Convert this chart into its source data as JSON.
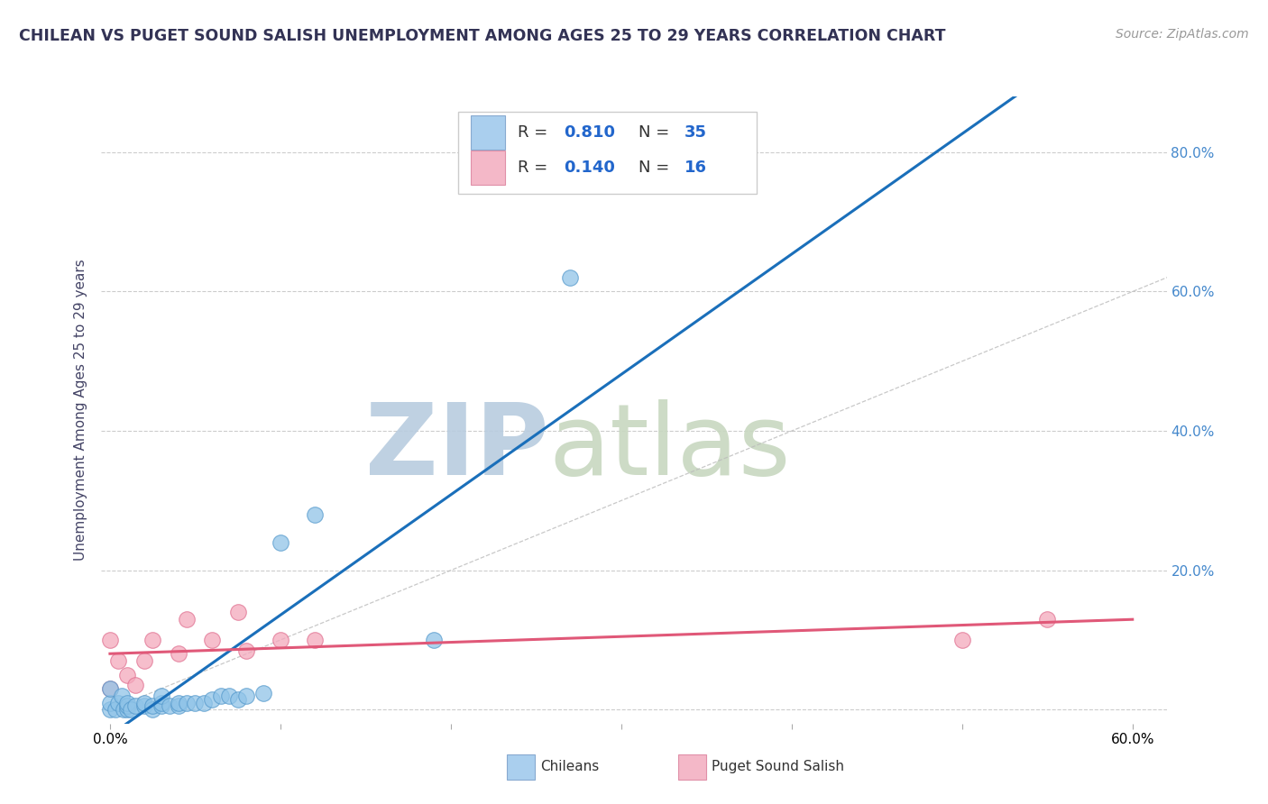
{
  "title": "CHILEAN VS PUGET SOUND SALISH UNEMPLOYMENT AMONG AGES 25 TO 29 YEARS CORRELATION CHART",
  "source_text": "Source: ZipAtlas.com",
  "ylabel": "Unemployment Among Ages 25 to 29 years",
  "xlim": [
    -0.005,
    0.62
  ],
  "ylim": [
    -0.02,
    0.88
  ],
  "xticks": [
    0.0,
    0.1,
    0.2,
    0.3,
    0.4,
    0.5,
    0.6
  ],
  "xtick_labels": [
    "0.0%",
    "",
    "",
    "",
    "",
    "",
    "60.0%"
  ],
  "ytick_labels_right": [
    "",
    "20.0%",
    "40.0%",
    "60.0%",
    "80.0%"
  ],
  "ytick_vals": [
    0.0,
    0.2,
    0.4,
    0.6,
    0.8
  ],
  "chileans_x": [
    0.0,
    0.0,
    0.0,
    0.003,
    0.005,
    0.007,
    0.008,
    0.01,
    0.01,
    0.01,
    0.012,
    0.015,
    0.02,
    0.02,
    0.025,
    0.025,
    0.03,
    0.03,
    0.03,
    0.035,
    0.04,
    0.04,
    0.045,
    0.05,
    0.055,
    0.06,
    0.065,
    0.07,
    0.075,
    0.08,
    0.09,
    0.1,
    0.12,
    0.19,
    0.27
  ],
  "chileans_y": [
    0.0,
    0.01,
    0.03,
    0.0,
    0.01,
    0.02,
    0.0,
    0.0,
    0.005,
    0.01,
    0.0,
    0.005,
    0.005,
    0.01,
    0.0,
    0.005,
    0.005,
    0.01,
    0.02,
    0.005,
    0.005,
    0.01,
    0.01,
    0.01,
    0.01,
    0.015,
    0.02,
    0.02,
    0.015,
    0.02,
    0.024,
    0.24,
    0.28,
    0.1,
    0.62
  ],
  "puget_x": [
    0.0,
    0.0,
    0.005,
    0.01,
    0.015,
    0.02,
    0.025,
    0.04,
    0.045,
    0.06,
    0.075,
    0.08,
    0.1,
    0.12,
    0.5,
    0.55
  ],
  "puget_y": [
    0.03,
    0.1,
    0.07,
    0.05,
    0.035,
    0.07,
    0.1,
    0.08,
    0.13,
    0.1,
    0.14,
    0.085,
    0.1,
    0.1,
    0.1,
    0.13
  ],
  "chileans_color": "#90c4e8",
  "puget_color": "#f4a8bc",
  "chileans_edge": "#5599cc",
  "puget_edge": "#e07090",
  "regression_blue_color": "#1a6fba",
  "regression_pink_color": "#e05878",
  "diag_color": "#bbbbbb",
  "R_chileans": 0.81,
  "N_chileans": 35,
  "R_puget": 0.14,
  "N_puget": 16,
  "watermark_zip": "ZIP",
  "watermark_atlas": "atlas",
  "watermark_color_zip": "#b8ccdf",
  "watermark_color_atlas": "#c8d8c0",
  "legend_box_blue": "#aacfee",
  "legend_box_pink": "#f4b8c8",
  "title_color": "#333355",
  "source_color": "#999999",
  "axis_label_color": "#444466",
  "tick_color_right": "#4488cc",
  "grid_color": "#cccccc"
}
